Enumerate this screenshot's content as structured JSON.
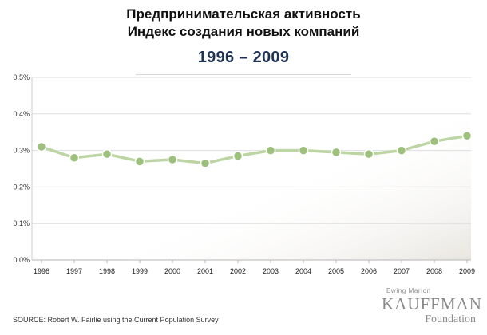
{
  "title_line1": "Предпринимательская активность",
  "title_line2": "Индекс создания новых компаний",
  "subtitle": "1996 – 2009",
  "source": "SOURCE: Robert W. Fairlie using the Current Population Survey",
  "logo": {
    "small": "Ewing Marion",
    "big": "KAUFFMAN",
    "foundation": "Foundation"
  },
  "colors": {
    "line": "#bcd5a3",
    "marker": "#9dc07c",
    "marker_edge": "#ffffff",
    "grid": "#dedede"
  },
  "chart_data": {
    "type": "line",
    "categories": [
      "1996",
      "1997",
      "1998",
      "1999",
      "2000",
      "2001",
      "2002",
      "2003",
      "2004",
      "2005",
      "2006",
      "2007",
      "2008",
      "2009"
    ],
    "values": [
      0.31,
      0.28,
      0.29,
      0.27,
      0.275,
      0.265,
      0.285,
      0.3,
      0.3,
      0.295,
      0.29,
      0.3,
      0.325,
      0.34
    ],
    "ylim": [
      0,
      0.5
    ],
    "yticks": [
      0,
      0.1,
      0.2,
      0.3,
      0.4,
      0.5
    ],
    "ytick_labels": [
      "0.0%",
      "0.1%",
      "0.2%",
      "0.3%",
      "0.4%",
      "0.5%"
    ],
    "grid": true,
    "xlabel": "",
    "ylabel": ""
  }
}
